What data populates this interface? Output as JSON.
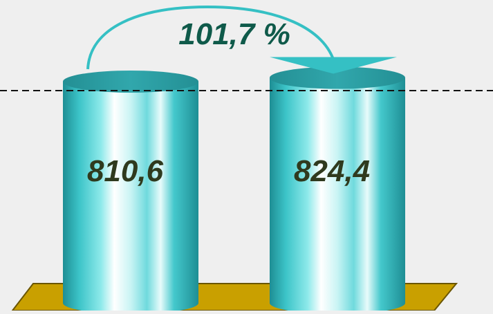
{
  "chart_data": {
    "type": "bar",
    "categories": [
      "",
      ""
    ],
    "values": [
      810.6,
      824.4
    ],
    "value_labels": [
      "810,6",
      "824,4"
    ],
    "growth_label": "101,7 %",
    "title": "",
    "xlabel": "",
    "ylabel": "",
    "reference_line": "dashed",
    "colors": {
      "bar": "#3cc4c8",
      "bar_top": "#2a9ea3",
      "platform": "#c9a000",
      "arrow": "#35c0c4",
      "label_text": "#2f3a1e",
      "growth_text": "#0f5a4a"
    }
  }
}
